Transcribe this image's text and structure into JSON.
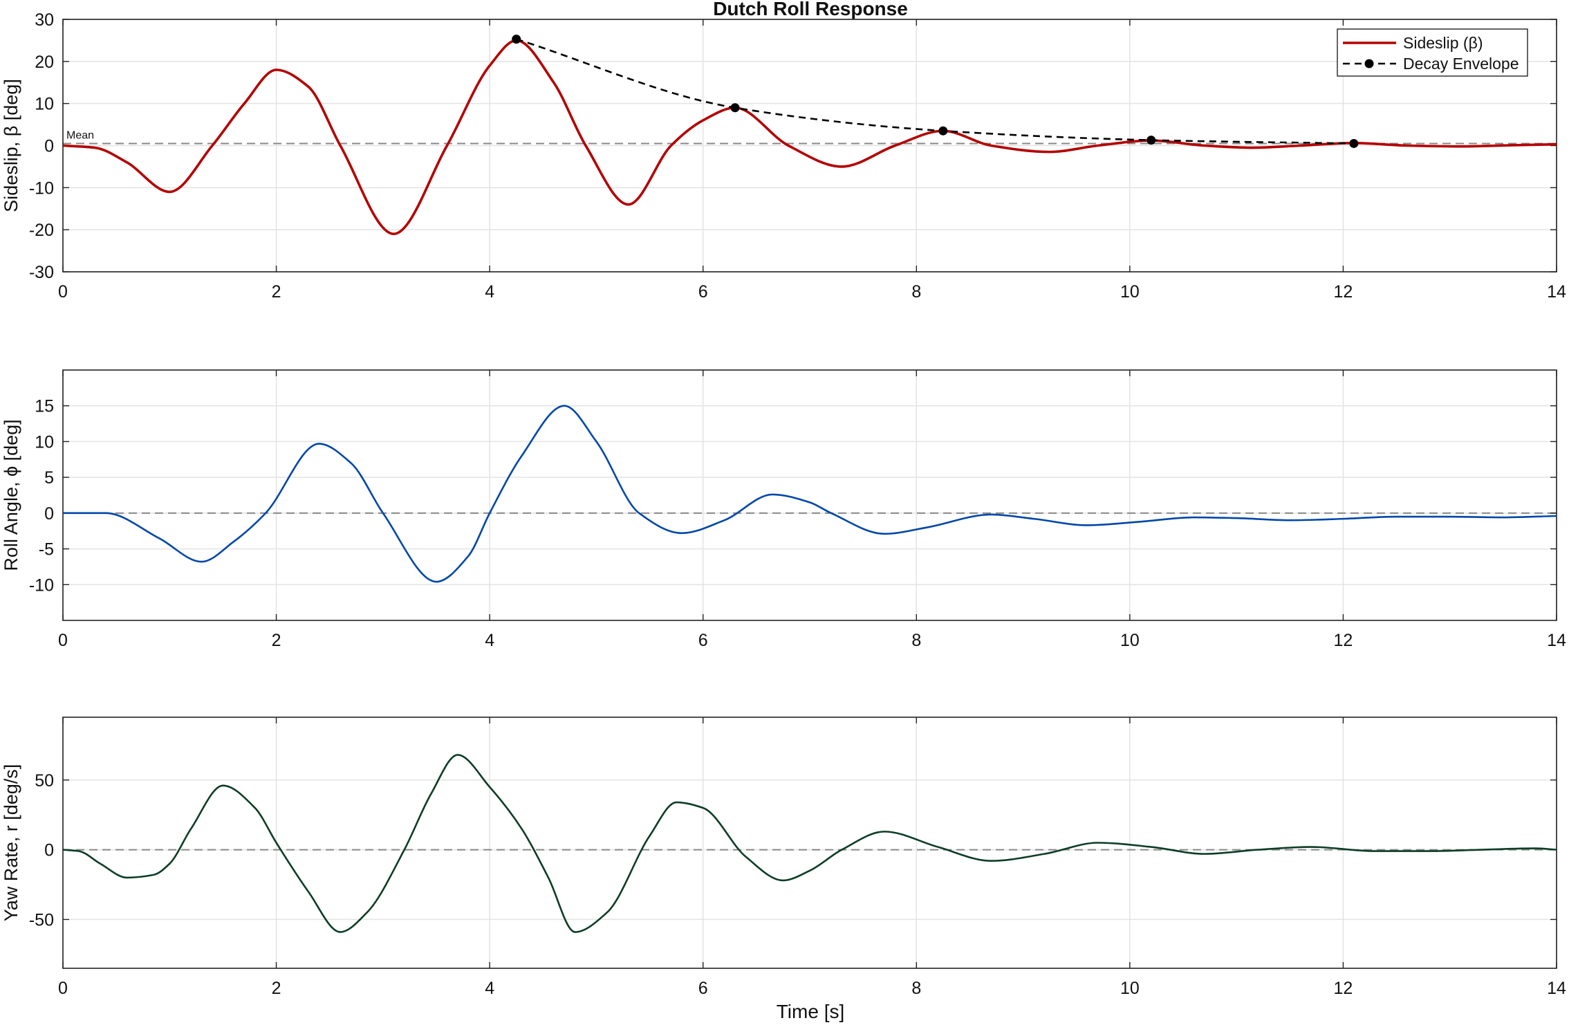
{
  "figure": {
    "title": "Dutch Roll Response",
    "xlabel": "Time [s]"
  },
  "colors": {
    "sideslip": "#b30000",
    "roll": "#0047a8",
    "yaw": "#0d3d26",
    "envelope": "#000000",
    "zero_line": "#888888",
    "grid": "#e3e3e3"
  },
  "chart_data": [
    {
      "type": "line",
      "title": "Dutch Roll Response",
      "xlabel": "",
      "ylabel": "Sideslip,  β  [deg]",
      "xlim": [
        0,
        14
      ],
      "ylim": [
        -30,
        30
      ],
      "xticks": [
        0,
        2,
        4,
        6,
        8,
        10,
        12,
        14
      ],
      "yticks": [
        -30,
        -20,
        -10,
        0,
        10,
        20,
        30
      ],
      "grid": true,
      "legend": "top-right",
      "zero_line": {
        "value": 0.5,
        "label": "Mean"
      },
      "series": [
        {
          "name": "Sideslip  (β)",
          "x": [
            0,
            0.3,
            0.6,
            1.0,
            1.4,
            1.7,
            2.0,
            2.3,
            2.6,
            3.1,
            3.6,
            4.0,
            4.25,
            4.6,
            4.9,
            5.3,
            5.7,
            6.0,
            6.3,
            6.8,
            7.3,
            7.8,
            8.25,
            8.7,
            9.25,
            9.7,
            10.2,
            10.7,
            11.15,
            11.6,
            12.1,
            12.6,
            13.1,
            13.6,
            14.0
          ],
          "values": [
            0,
            -0.5,
            -4,
            -11,
            0,
            10,
            18,
            14,
            0,
            -21,
            0,
            19,
            25,
            15,
            0,
            -14,
            0,
            6,
            9,
            0,
            -5,
            0,
            3.5,
            0,
            -1.5,
            0,
            1.2,
            0,
            -0.5,
            0,
            0.6,
            0,
            -0.2,
            0.1,
            0.3
          ]
        },
        {
          "name": "Decay Envelope",
          "x": [
            4.25,
            6.3,
            8.25,
            10.2,
            12.1
          ],
          "values": [
            25.3,
            9.0,
            3.5,
            1.3,
            0.5
          ]
        }
      ]
    },
    {
      "type": "line",
      "xlabel": "",
      "ylabel": "Roll  Angle,  ϕ  [deg]",
      "xlim": [
        0,
        14
      ],
      "ylim": [
        -15,
        20
      ],
      "xticks": [
        0,
        2,
        4,
        6,
        8,
        10,
        12,
        14
      ],
      "yticks": [
        -10,
        -5,
        0,
        5,
        10,
        15
      ],
      "grid": true,
      "zero_line": {
        "value": 0
      },
      "series": [
        {
          "x": [
            0,
            0.4,
            0.9,
            1.3,
            1.6,
            1.9,
            2.4,
            2.7,
            3.0,
            3.5,
            3.8,
            4.0,
            4.3,
            4.7,
            5.0,
            5.4,
            5.8,
            6.2,
            6.65,
            7.0,
            7.2,
            7.7,
            8.1,
            8.7,
            9.1,
            9.6,
            10.1,
            10.6,
            11.0,
            11.5,
            12.0,
            12.5,
            13.0,
            13.5,
            14.0
          ],
          "values": [
            0,
            0,
            -3.5,
            -6.8,
            -4,
            0,
            9.7,
            7,
            0,
            -9.6,
            -6,
            0,
            8,
            15,
            10,
            0,
            -2.8,
            -1,
            2.6,
            1.5,
            0,
            -2.9,
            -2,
            -0.2,
            -0.8,
            -1.7,
            -1.2,
            -0.6,
            -0.7,
            -1.0,
            -0.8,
            -0.5,
            -0.5,
            -0.6,
            -0.4
          ]
        }
      ]
    },
    {
      "type": "line",
      "xlabel": "Time [s]",
      "ylabel": "Yaw Rate, r [deg/s]",
      "xlim": [
        0,
        14
      ],
      "ylim": [
        -85,
        95
      ],
      "xticks": [
        0,
        2,
        4,
        6,
        8,
        10,
        12,
        14
      ],
      "yticks": [
        -50,
        0,
        50
      ],
      "grid": true,
      "zero_line": {
        "value": 0
      },
      "series": [
        {
          "x": [
            0,
            0.15,
            0.35,
            0.6,
            0.85,
            1.0,
            1.2,
            1.5,
            1.8,
            2.0,
            2.3,
            2.6,
            2.85,
            3.2,
            3.45,
            3.7,
            4.0,
            4.3,
            4.55,
            4.8,
            5.1,
            5.5,
            5.75,
            6.0,
            6.4,
            6.75,
            7.0,
            7.3,
            7.7,
            8.2,
            8.7,
            9.2,
            9.7,
            10.2,
            10.7,
            11.2,
            11.7,
            12.3,
            12.8,
            13.3,
            13.8,
            14.0
          ],
          "values": [
            0,
            -1,
            -10,
            -20,
            -18,
            -10,
            15,
            46,
            30,
            5,
            -30,
            -59,
            -45,
            0,
            40,
            68,
            45,
            15,
            -20,
            -59,
            -45,
            10,
            34,
            30,
            -5,
            -22,
            -15,
            0,
            13,
            2,
            -8,
            -3,
            5,
            2,
            -3,
            0,
            2,
            -1,
            -1,
            0,
            1,
            0
          ]
        }
      ]
    }
  ]
}
